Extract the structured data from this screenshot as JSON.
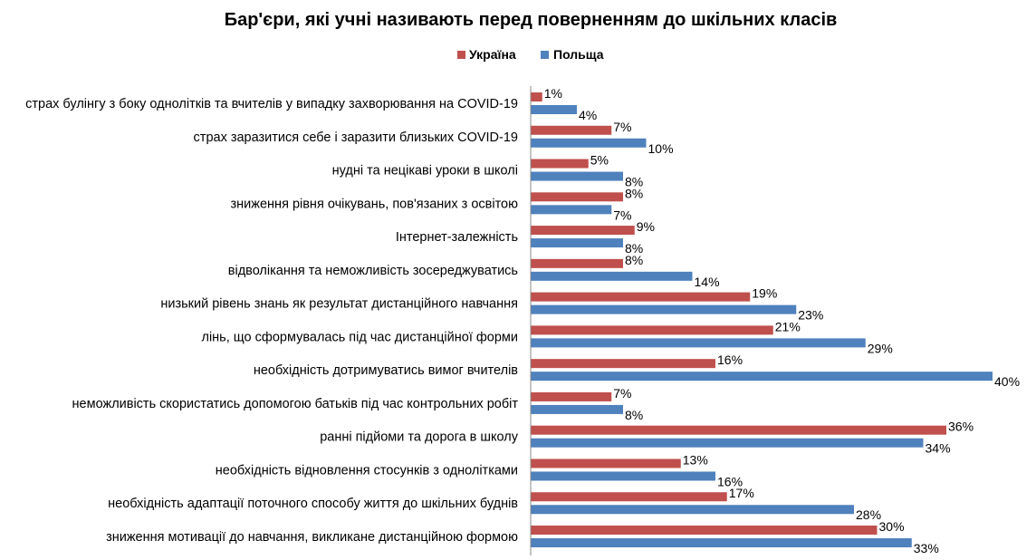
{
  "chart_data": {
    "type": "bar",
    "orientation": "horizontal",
    "title": "Бар'єри, які учні називають перед поверненням до шкільних класів",
    "xlabel": "",
    "ylabel": "",
    "xlim": [
      0,
      40
    ],
    "grid": false,
    "legend_position": "top",
    "value_format": "percent",
    "categories": [
      "страх булінгу з боку однолітків та вчителів у випадку захворювання на COVID-19",
      "страх заразитися себе  і заразити близьких COVID-19",
      "нудні та нецікаві уроки в школі",
      "зниження рівня очікувань, пов'язаних з освітою",
      "Інтернет-залежність",
      "відволікання та неможливість зосереджуватись",
      "низький рівень знань як результат дистанційного навчання",
      "лінь, що сформувалась під час дистанційної форми",
      "необхідність дотримуватись вимог вчителів",
      "неможливість скористатись допомогою батьків під час контрольних робіт",
      "ранні підйоми та дорога в школу",
      "необхідність відновлення стосунків з однолітками",
      "необхідність адаптації поточного способу життя до шкільних буднів",
      "зниження мотивації до навчання, викликане дистанційною формою"
    ],
    "series": [
      {
        "name": "Україна",
        "color": "#C0504D",
        "values": [
          1,
          7,
          5,
          8,
          9,
          8,
          19,
          21,
          16,
          7,
          36,
          13,
          17,
          30
        ]
      },
      {
        "name": "Польща",
        "color": "#4F81BD",
        "values": [
          4,
          10,
          8,
          7,
          8,
          14,
          23,
          29,
          40,
          8,
          34,
          16,
          28,
          33
        ]
      }
    ]
  }
}
